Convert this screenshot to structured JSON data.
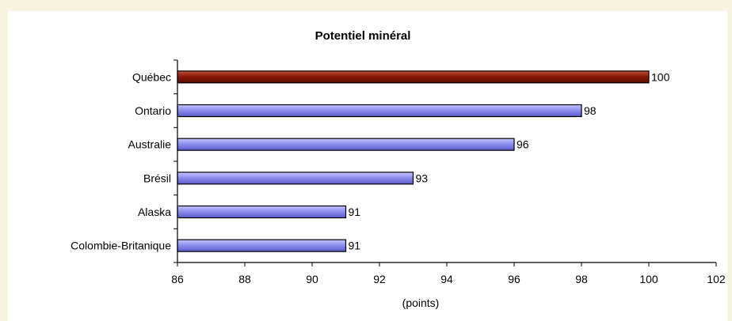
{
  "chart_data": {
    "type": "bar",
    "orientation": "horizontal",
    "title": "Potentiel minéral",
    "xlabel": "(points)",
    "ylabel": "",
    "categories": [
      "Québec",
      "Ontario",
      "Australie",
      "Brésil",
      "Alaska",
      "Colombie-Britanique"
    ],
    "values": [
      100,
      98,
      96,
      93,
      91,
      91
    ],
    "value_labels": [
      "100",
      "98",
      "96",
      "93",
      "91",
      "91"
    ],
    "xlim": [
      86,
      102
    ],
    "xticks": [
      "86",
      "88",
      "90",
      "92",
      "94",
      "96",
      "98",
      "100",
      "102"
    ],
    "grid": false,
    "legend": "none",
    "colors": {
      "highlight": "#8b1a0a",
      "default": "#8f8ff0",
      "outline": "#000000"
    }
  }
}
